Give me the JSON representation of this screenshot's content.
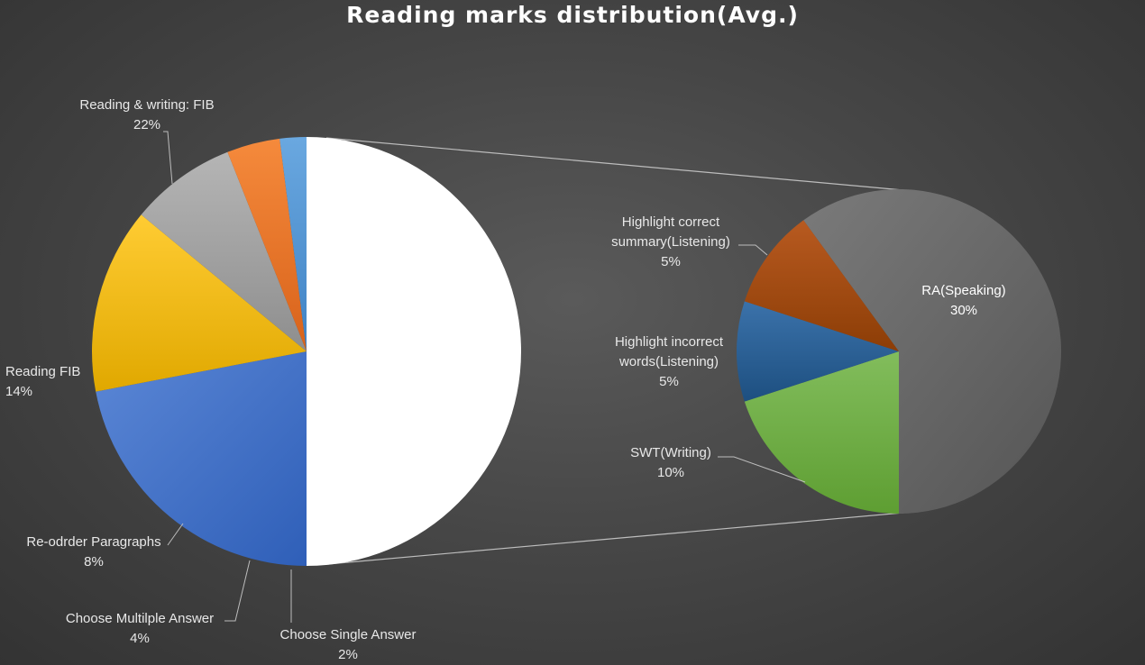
{
  "chart_data": {
    "type": "pie",
    "variant": "pie-of-pie",
    "title": "Reading marks distribution(Avg.)",
    "primary_pie": [
      {
        "name": "Reading & writing: FIB",
        "value": 22,
        "label": "22%",
        "color": "#4472c4"
      },
      {
        "name": "Reading FIB",
        "value": 14,
        "label": "14%",
        "color": "#ffc000"
      },
      {
        "name": "Re-odrder Paragraphs",
        "value": 8,
        "label": "8%",
        "color": "#a5a5a5"
      },
      {
        "name": "Choose Multilple Answer",
        "value": 4,
        "label": "4%",
        "color": "#ed7d31"
      },
      {
        "name": "Choose Single Answer",
        "value": 2,
        "label": "2%",
        "color": "#5b9bd5"
      }
    ],
    "other_slice": {
      "value": 50,
      "color": "#ffffff"
    },
    "secondary_pie": [
      {
        "name": "RA(Speaking)",
        "value": 30,
        "label": "30%",
        "color": "#636363"
      },
      {
        "name": "SWT(Writing)",
        "value": 10,
        "label": "10%",
        "color": "#70ad47"
      },
      {
        "name": "Highlight incorrect words(Listening)",
        "value": 5,
        "label": "5%",
        "color": "#255e91"
      },
      {
        "name": "Highlight correct summary(Listening)",
        "value": 5,
        "label": "5%",
        "color": "#9e480e"
      }
    ],
    "legend": "none"
  }
}
